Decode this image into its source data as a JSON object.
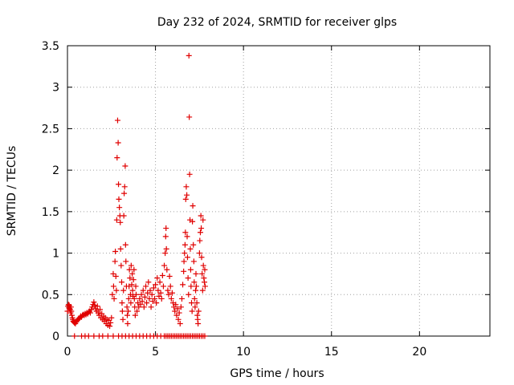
{
  "chart_data": {
    "type": "scatter",
    "title": "Day 232 of 2024, SRMTID for receiver glps",
    "xlabel": "GPS time / hours",
    "ylabel": "SRMTID / TECUs",
    "xlim": [
      0,
      24
    ],
    "ylim": [
      0,
      3.5
    ],
    "x_ticks": [
      0,
      5,
      10,
      15,
      20
    ],
    "y_ticks": [
      0,
      0.5,
      1,
      1.5,
      2,
      2.5,
      3,
      3.5
    ],
    "x_tick_labels": [
      "0",
      "5",
      "10",
      "15",
      "20"
    ],
    "y_tick_labels": [
      "0",
      "0.5",
      "1",
      "1.5",
      "2",
      "2.5",
      "3",
      "3.5"
    ],
    "grid": true,
    "marker": "+",
    "series": [
      {
        "name": "SRMTID",
        "color": "#e00000",
        "points": [
          [
            0.0,
            0.3
          ],
          [
            0.03,
            0.36
          ],
          [
            0.06,
            0.38
          ],
          [
            0.08,
            0.34
          ],
          [
            0.1,
            0.37
          ],
          [
            0.12,
            0.33
          ],
          [
            0.15,
            0.32
          ],
          [
            0.18,
            0.28
          ],
          [
            0.2,
            0.35
          ],
          [
            0.22,
            0.3
          ],
          [
            0.25,
            0.25
          ],
          [
            0.28,
            0.22
          ],
          [
            0.3,
            0.2
          ],
          [
            0.33,
            0.18
          ],
          [
            0.36,
            0.17
          ],
          [
            0.4,
            0.16
          ],
          [
            0.45,
            0.15
          ],
          [
            0.5,
            0.17
          ],
          [
            0.55,
            0.19
          ],
          [
            0.6,
            0.2
          ],
          [
            0.65,
            0.21
          ],
          [
            0.7,
            0.22
          ],
          [
            0.75,
            0.24
          ],
          [
            0.8,
            0.23
          ],
          [
            0.85,
            0.25
          ],
          [
            0.9,
            0.26
          ],
          [
            0.95,
            0.25
          ],
          [
            1.0,
            0.27
          ],
          [
            1.05,
            0.26
          ],
          [
            1.1,
            0.28
          ],
          [
            1.15,
            0.27
          ],
          [
            1.2,
            0.29
          ],
          [
            1.25,
            0.3
          ],
          [
            1.3,
            0.28
          ],
          [
            1.35,
            0.32
          ],
          [
            1.4,
            0.35
          ],
          [
            1.45,
            0.38
          ],
          [
            1.5,
            0.41
          ],
          [
            1.55,
            0.37
          ],
          [
            1.6,
            0.33
          ],
          [
            1.65,
            0.3
          ],
          [
            1.7,
            0.36
          ],
          [
            1.75,
            0.28
          ],
          [
            1.8,
            0.25
          ],
          [
            1.85,
            0.32
          ],
          [
            1.9,
            0.22
          ],
          [
            1.95,
            0.27
          ],
          [
            2.0,
            0.2
          ],
          [
            2.05,
            0.24
          ],
          [
            2.1,
            0.18
          ],
          [
            2.15,
            0.22
          ],
          [
            2.2,
            0.15
          ],
          [
            2.25,
            0.2
          ],
          [
            2.3,
            0.13
          ],
          [
            2.35,
            0.19
          ],
          [
            2.4,
            0.12
          ],
          [
            2.45,
            0.16
          ],
          [
            2.5,
            0.22
          ],
          [
            2.55,
            0.5
          ],
          [
            2.6,
            0.75
          ],
          [
            2.62,
            0.6
          ],
          [
            2.65,
            0.45
          ],
          [
            2.7,
            0.9
          ],
          [
            2.72,
            1.02
          ],
          [
            2.75,
            0.72
          ],
          [
            2.78,
            0.55
          ],
          [
            2.8,
            1.4
          ],
          [
            2.82,
            2.15
          ],
          [
            2.85,
            2.6
          ],
          [
            2.88,
            2.33
          ],
          [
            2.9,
            1.83
          ],
          [
            2.92,
            1.65
          ],
          [
            2.95,
            1.55
          ],
          [
            2.98,
            1.45
          ],
          [
            3.0,
            1.37
          ],
          [
            3.02,
            1.05
          ],
          [
            3.05,
            0.85
          ],
          [
            3.08,
            0.65
          ],
          [
            3.1,
            0.4
          ],
          [
            3.12,
            0.3
          ],
          [
            3.15,
            0.2
          ],
          [
            3.18,
            0.55
          ],
          [
            3.2,
            1.45
          ],
          [
            3.22,
            1.72
          ],
          [
            3.25,
            1.8
          ],
          [
            3.28,
            2.05
          ],
          [
            3.3,
            1.1
          ],
          [
            3.32,
            0.9
          ],
          [
            3.35,
            0.6
          ],
          [
            3.38,
            0.35
          ],
          [
            3.4,
            0.25
          ],
          [
            3.42,
            0.15
          ],
          [
            3.45,
            0.3
          ],
          [
            3.48,
            0.45
          ],
          [
            3.5,
            0.6
          ],
          [
            3.52,
            0.8
          ],
          [
            3.55,
            0.7
          ],
          [
            3.58,
            0.5
          ],
          [
            3.6,
            0.4
          ],
          [
            3.62,
            0.85
          ],
          [
            3.65,
            0.62
          ],
          [
            3.68,
            0.75
          ],
          [
            3.7,
            0.55
          ],
          [
            3.72,
            0.48
          ],
          [
            3.75,
            0.68
          ],
          [
            3.78,
            0.8
          ],
          [
            3.8,
            0.45
          ],
          [
            3.82,
            0.35
          ],
          [
            3.85,
            0.25
          ],
          [
            3.88,
            0.6
          ],
          [
            3.9,
            0.5
          ],
          [
            3.95,
            0.3
          ],
          [
            4.0,
            0.4
          ],
          [
            4.05,
            0.35
          ],
          [
            4.1,
            0.45
          ],
          [
            4.15,
            0.38
          ],
          [
            4.2,
            0.5
          ],
          [
            4.25,
            0.42
          ],
          [
            4.3,
            0.55
          ],
          [
            4.35,
            0.35
          ],
          [
            4.4,
            0.47
          ],
          [
            4.45,
            0.6
          ],
          [
            4.5,
            0.4
          ],
          [
            4.55,
            0.52
          ],
          [
            4.6,
            0.65
          ],
          [
            4.65,
            0.45
          ],
          [
            4.7,
            0.55
          ],
          [
            4.75,
            0.35
          ],
          [
            4.8,
            0.5
          ],
          [
            4.85,
            0.42
          ],
          [
            4.9,
            0.58
          ],
          [
            4.95,
            0.45
          ],
          [
            5.0,
            0.62
          ],
          [
            5.05,
            0.4
          ],
          [
            5.1,
            0.7
          ],
          [
            5.15,
            0.55
          ],
          [
            5.2,
            0.48
          ],
          [
            5.25,
            0.65
          ],
          [
            5.3,
            0.52
          ],
          [
            5.35,
            0.45
          ],
          [
            5.4,
            0.73
          ],
          [
            5.45,
            0.6
          ],
          [
            5.5,
            0.85
          ],
          [
            5.55,
            1.0
          ],
          [
            5.58,
            1.2
          ],
          [
            5.6,
            1.3
          ],
          [
            5.62,
            1.05
          ],
          [
            5.65,
            0.8
          ],
          [
            5.7,
            0.55
          ],
          [
            5.75,
            0.5
          ],
          [
            5.8,
            0.72
          ],
          [
            5.85,
            0.6
          ],
          [
            5.9,
            0.45
          ],
          [
            5.95,
            0.52
          ],
          [
            6.0,
            0.4
          ],
          [
            6.05,
            0.35
          ],
          [
            6.1,
            0.3
          ],
          [
            6.15,
            0.38
          ],
          [
            6.2,
            0.25
          ],
          [
            6.25,
            0.33
          ],
          [
            6.3,
            0.2
          ],
          [
            6.35,
            0.28
          ],
          [
            6.4,
            0.15
          ],
          [
            6.45,
            0.35
          ],
          [
            6.5,
            0.45
          ],
          [
            6.55,
            0.62
          ],
          [
            6.6,
            0.78
          ],
          [
            6.62,
            0.9
          ],
          [
            6.65,
            1.0
          ],
          [
            6.68,
            1.1
          ],
          [
            6.7,
            1.25
          ],
          [
            6.72,
            1.65
          ],
          [
            6.75,
            1.8
          ],
          [
            6.78,
            1.7
          ],
          [
            6.8,
            1.2
          ],
          [
            6.82,
            0.95
          ],
          [
            6.85,
            0.7
          ],
          [
            6.88,
            0.5
          ],
          [
            6.9,
            3.38
          ],
          [
            6.92,
            2.64
          ],
          [
            6.94,
            1.95
          ],
          [
            6.96,
            1.4
          ],
          [
            6.98,
            1.05
          ],
          [
            7.0,
            0.8
          ],
          [
            7.02,
            0.6
          ],
          [
            7.05,
            0.4
          ],
          [
            7.08,
            0.3
          ],
          [
            7.1,
            1.38
          ],
          [
            7.12,
            1.57
          ],
          [
            7.15,
            1.1
          ],
          [
            7.18,
            0.9
          ],
          [
            7.2,
            0.65
          ],
          [
            7.22,
            0.45
          ],
          [
            7.25,
            0.35
          ],
          [
            7.28,
            0.55
          ],
          [
            7.3,
            0.75
          ],
          [
            7.32,
            0.6
          ],
          [
            7.35,
            0.4
          ],
          [
            7.38,
            0.25
          ],
          [
            7.4,
            0.2
          ],
          [
            7.42,
            0.15
          ],
          [
            7.45,
            0.3
          ],
          [
            7.5,
            1.0
          ],
          [
            7.52,
            1.15
          ],
          [
            7.55,
            1.25
          ],
          [
            7.58,
            1.45
          ],
          [
            7.6,
            1.3
          ],
          [
            7.62,
            0.95
          ],
          [
            7.65,
            0.75
          ],
          [
            7.68,
            0.55
          ],
          [
            7.7,
            1.4
          ],
          [
            7.72,
            0.85
          ],
          [
            7.75,
            0.7
          ],
          [
            7.78,
            0.65
          ],
          [
            7.8,
            0.8
          ],
          [
            7.82,
            0.6
          ],
          [
            0.4,
            0.0
          ],
          [
            0.8,
            0.0
          ],
          [
            1.0,
            0.0
          ],
          [
            1.2,
            0.0
          ],
          [
            1.5,
            0.0
          ],
          [
            1.8,
            0.0
          ],
          [
            2.0,
            0.0
          ],
          [
            2.3,
            0.0
          ],
          [
            2.6,
            0.0
          ],
          [
            2.9,
            0.0
          ],
          [
            3.1,
            0.0
          ],
          [
            3.3,
            0.0
          ],
          [
            3.5,
            0.0
          ],
          [
            3.7,
            0.0
          ],
          [
            3.9,
            0.0
          ],
          [
            4.1,
            0.0
          ],
          [
            4.3,
            0.0
          ],
          [
            4.5,
            0.0
          ],
          [
            4.7,
            0.0
          ],
          [
            4.9,
            0.0
          ],
          [
            5.1,
            0.0
          ],
          [
            5.3,
            0.0
          ],
          [
            5.5,
            0.0
          ],
          [
            5.6,
            0.0
          ],
          [
            5.7,
            0.0
          ],
          [
            5.8,
            0.0
          ],
          [
            5.9,
            0.0
          ],
          [
            6.0,
            0.0
          ],
          [
            6.1,
            0.0
          ],
          [
            6.2,
            0.0
          ],
          [
            6.3,
            0.0
          ],
          [
            6.4,
            0.0
          ],
          [
            6.5,
            0.0
          ],
          [
            6.6,
            0.0
          ],
          [
            6.7,
            0.0
          ],
          [
            6.8,
            0.0
          ],
          [
            6.9,
            0.0
          ],
          [
            7.0,
            0.0
          ],
          [
            7.1,
            0.0
          ],
          [
            7.2,
            0.0
          ],
          [
            7.3,
            0.0
          ],
          [
            7.4,
            0.0
          ],
          [
            7.5,
            0.0
          ],
          [
            7.6,
            0.0
          ],
          [
            7.7,
            0.0
          ],
          [
            7.8,
            0.0
          ]
        ]
      }
    ]
  }
}
